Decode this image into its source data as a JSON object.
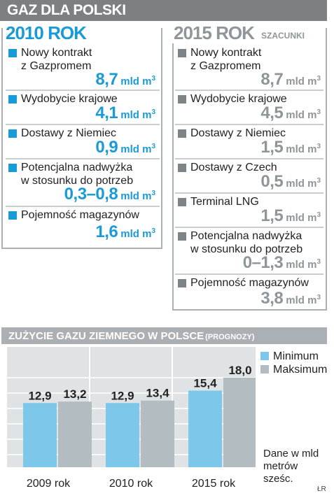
{
  "header": {
    "title": "GAZ DLA POLSKI"
  },
  "left": {
    "year": "2010 ROK",
    "items": [
      {
        "label": "Nowy kontrakt\nz Gazpromem",
        "value": "8,7",
        "unit": "mld m",
        "sup": "3"
      },
      {
        "label": "Wydobycie krajowe",
        "value": "4,1",
        "unit": "mld m",
        "sup": "3"
      },
      {
        "label": "Dostawy z Niemiec",
        "value": "0,9",
        "unit": "mld m",
        "sup": "3"
      },
      {
        "label": "Potencjalna nadwyżka\nw stosunku do potrzeb",
        "value": "0,3–0,8",
        "unit": "mld m",
        "sup": "3"
      },
      {
        "label": "Pojemność magazynów",
        "value": "1,6",
        "unit": "mld m",
        "sup": "3"
      }
    ]
  },
  "right": {
    "year": "2015 ROK",
    "note": "SZACUNKI",
    "items": [
      {
        "label": "Nowy kontrakt\nz Gazpromem",
        "value": "8,7",
        "unit": "mld m",
        "sup": "3"
      },
      {
        "label": "Wydobycie krajowe",
        "value": "4,5",
        "unit": "mld m",
        "sup": "3"
      },
      {
        "label": "Dostawy z Niemiec",
        "value": "1,5",
        "unit": "mld m",
        "sup": "3"
      },
      {
        "label": "Dostawy z Czech",
        "value": "0,5",
        "unit": "mld m",
        "sup": "3"
      },
      {
        "label": "Terminal LNG",
        "value": "1,5",
        "unit": "mld m",
        "sup": "3"
      },
      {
        "label": "Potencjalna nadwyżka\nw stosunku do potrzeb",
        "value": "0–1,3",
        "unit": "mld m",
        "sup": "3"
      },
      {
        "label": "Pojemność magazynów",
        "value": "3,8",
        "unit": "mld m",
        "sup": "3"
      }
    ]
  },
  "chart_section": {
    "title": "ZUŻYCIE GAZU ZIEMNEGO W POLSCE",
    "subtitle": "(PROGNOZY)",
    "note": "Dane w mld\nmetrów\nsześc.",
    "credit": "ŁR"
  },
  "chart_data": {
    "type": "bar",
    "title": "ZUŻYCIE GAZU ZIEMNEGO W POLSCE (PROGNOZY)",
    "categories": [
      "2009 rok",
      "2010 rok",
      "2015 rok"
    ],
    "series": [
      {
        "name": "Minimum",
        "values": [
          12.9,
          12.9,
          15.4
        ],
        "labels": [
          "12,9",
          "12,9",
          "15,4"
        ],
        "color": "#7cc7ea"
      },
      {
        "name": "Maksimum",
        "values": [
          13.2,
          13.4,
          18.0
        ],
        "labels": [
          "13,2",
          "13,4",
          "18,0"
        ],
        "color": "#b3bcc1"
      }
    ],
    "ylim": [
      0,
      18
    ],
    "grid": true,
    "legend": "right"
  },
  "colors": {
    "accent_blue": "#1a9ad6",
    "grey": "#8f969a",
    "banner": "#7d8083",
    "chart_bg": "#dfe3e5"
  }
}
